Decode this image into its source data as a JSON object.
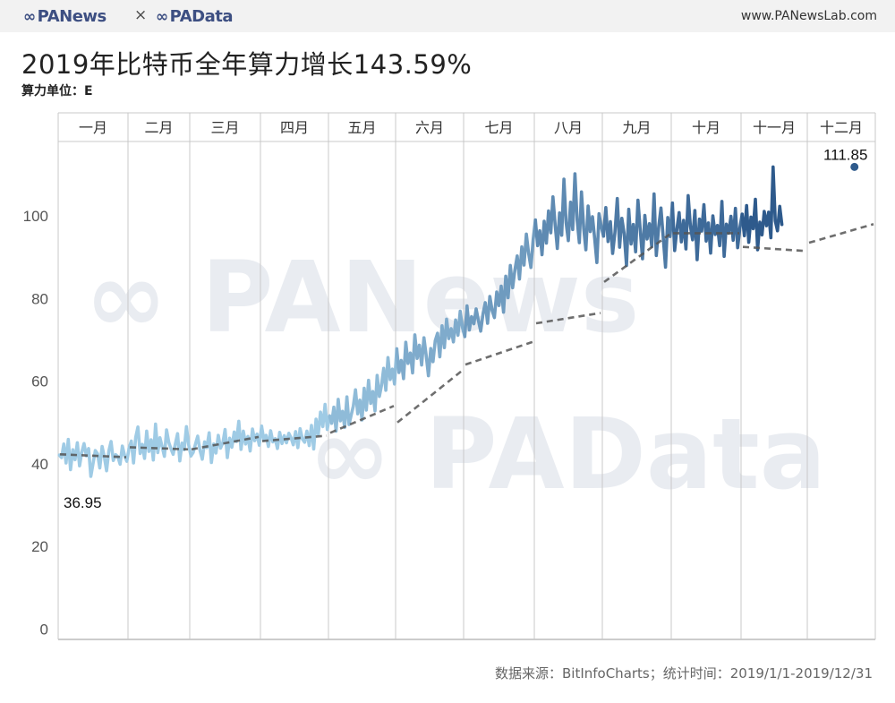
{
  "header": {
    "logo_left": "PANews",
    "logo_sep": "×",
    "logo_right": "PAData",
    "site": "www.PANewsLab.com"
  },
  "chart_data": {
    "type": "line",
    "title": "2019年比特币全年算力增长143.59%",
    "unit_label": "算力单位：E",
    "source": "数据来源：BitInfoCharts；统计时间：2019/1/1-2019/12/31",
    "xlabel": "",
    "ylabel": "",
    "months": [
      "一月",
      "二月",
      "三月",
      "四月",
      "五月",
      "六月",
      "七月",
      "八月",
      "九月",
      "十月",
      "十一月",
      "十二月"
    ],
    "yticks": [
      0,
      20,
      40,
      60,
      80,
      100
    ],
    "ylim": [
      -2.5,
      118
    ],
    "annotations": [
      {
        "label": "36.95",
        "value": 36.95,
        "date": "2019-01-15"
      },
      {
        "label": "111.85",
        "value": 111.85,
        "date": "2019-12-22"
      }
    ],
    "colors": {
      "light": "#9fcbe5",
      "dark": "#2e5a8c",
      "trend": "#555555",
      "grid": "#c9c9c9"
    },
    "series": [
      {
        "values": [
          42.1,
          41.5,
          44.8,
          40.2,
          45.9,
          38.6,
          43.4,
          41.0,
          45.1,
          39.5,
          42.8,
          44.9,
          41.9,
          43.7,
          36.95,
          40.1,
          43.2,
          42.4,
          39.0,
          44.2,
          41.6,
          38.3,
          43.1,
          45.4,
          40.8,
          42.2,
          41.7,
          39.9,
          44.3,
          42.0,
          40.6,
          43.8,
          45.5,
          40.2,
          46.4,
          48.9,
          42.5,
          44.7,
          41.3,
          47.9,
          43.0,
          45.8,
          40.9,
          49.6,
          42.7,
          46.3,
          44.1,
          41.8,
          48.2,
          45.2,
          43.6,
          42.3,
          44.9,
          47.3,
          40.7,
          45.0,
          43.4,
          49.0,
          44.6,
          41.9,
          42.7,
          44.8,
          46.7,
          43.2,
          41.1,
          45.3,
          43.9,
          47.5,
          40.3,
          44.8,
          42.6,
          46.9,
          43.8,
          45.1,
          48.3,
          41.5,
          46.2,
          44.0,
          47.7,
          45.4,
          50.3,
          43.5,
          47.9,
          44.8,
          46.6,
          43.1,
          48.4,
          45.6,
          47.2,
          44.5,
          49.1,
          45.8,
          46.9,
          44.2,
          48.0,
          45.3,
          46.1,
          43.7,
          47.6,
          44.9,
          46.8,
          45.1,
          47.4,
          46.3,
          44.6,
          47.8,
          43.9,
          48.5,
          46.0,
          45.2,
          47.9,
          44.4,
          49.3,
          43.6,
          50.8,
          47.1,
          52.5,
          49.0,
          54.4,
          48.3,
          51.6,
          49.8,
          53.7,
          47.9,
          55.6,
          50.4,
          52.7,
          48.8,
          56.2,
          49.5,
          51.8,
          54.0,
          57.9,
          52.1,
          55.4,
          50.6,
          58.3,
          53.0,
          60.2,
          54.6,
          57.5,
          52.8,
          61.4,
          56.3,
          59.0,
          63.1,
          57.8,
          65.7,
          60.4,
          62.9,
          59.3,
          67.8,
          62.1,
          65.0,
          60.6,
          69.4,
          64.3,
          66.8,
          62.0,
          71.2,
          65.5,
          68.7,
          63.9,
          70.5,
          66.2,
          61.3,
          67.9,
          64.7,
          69.8,
          71.6,
          65.9,
          73.4,
          68.1,
          75.0,
          70.3,
          72.7,
          69.5,
          74.8,
          71.1,
          76.9,
          73.0,
          70.8,
          78.2,
          72.4,
          75.6,
          73.9,
          77.5,
          74.6,
          72.1,
          76.3,
          79.0,
          74.0,
          80.5,
          77.1,
          75.4,
          81.6,
          78.3,
          83.0,
          76.7,
          85.4,
          80.2,
          88.0,
          82.6,
          86.9,
          90.3,
          84.7,
          92.5,
          88.1,
          95.6,
          91.0,
          87.5,
          94.2,
          99.0,
          92.8,
          96.4,
          90.6,
          98.7,
          93.4,
          101.2,
          95.9,
          104.6,
          97.8,
          92.1,
          100.7,
          95.3,
          108.9,
          98.4,
          94.0,
          103.3,
          96.7,
          110.2,
          99.1,
          93.5,
          105.8,
          97.0,
          91.8,
          102.4,
          96.2,
          99.8,
          94.6,
          88.7,
          100.5,
          97.3,
          95.1,
          102.0,
          93.8,
          98.6,
          90.9,
          96.0,
          104.2,
          92.4,
          99.4,
          95.7,
          88.0,
          101.6,
          93.2,
          97.9,
          91.3,
          103.8,
          96.5,
          89.6,
          100.1,
          94.4,
          98.1,
          92.6,
          105.3,
          90.4,
          97.2,
          101.9,
          94.9,
          87.6,
          99.6,
          95.0,
          103.1,
          91.6,
          96.8,
          100.8,
          93.7,
          98.9,
          92.0,
          104.9,
          97.5,
          94.2,
          101.3,
          89.4,
          99.2,
          96.3,
          102.7,
          93.9,
          98.3,
          91.0,
          100.0,
          95.5,
          97.7,
          92.8,
          103.5,
          90.2,
          98.0,
          95.8,
          99.9,
          94.1,
          101.8,
          92.3,
          97.1,
          100.4,
          95.2,
          102.5,
          93.6,
          99.7,
          96.9,
          104.0,
          91.8,
          98.5,
          95.4,
          101.1,
          97.6,
          100.9,
          94.7,
          111.85,
          98.8,
          96.4,
          102.3,
          97.9
        ],
        "role": "daily hashrate (E)"
      }
    ],
    "trend_segments": [
      {
        "month": "一月",
        "from": 42.3,
        "to": 41.6
      },
      {
        "month": "二月",
        "from": 44.0,
        "to": 43.5
      },
      {
        "month": "三月",
        "from": 43.5,
        "to": 46.5
      },
      {
        "month": "四月",
        "from": 45.5,
        "to": 46.8
      },
      {
        "month": "五月",
        "from": 47.5,
        "to": 54.0
      },
      {
        "month": "六月",
        "from": 50.0,
        "to": 62.5
      },
      {
        "month": "七月",
        "from": 64.0,
        "to": 69.5
      },
      {
        "month": "八月",
        "from": 74.0,
        "to": 76.5
      },
      {
        "month": "九月",
        "from": 84.0,
        "to": 95.5
      },
      {
        "month": "十月",
        "from": 95.8,
        "to": 95.8
      },
      {
        "month": "十一月",
        "from": 92.5,
        "to": 91.5
      },
      {
        "month": "十二月",
        "from": 93.5,
        "to": 98.0
      }
    ]
  }
}
